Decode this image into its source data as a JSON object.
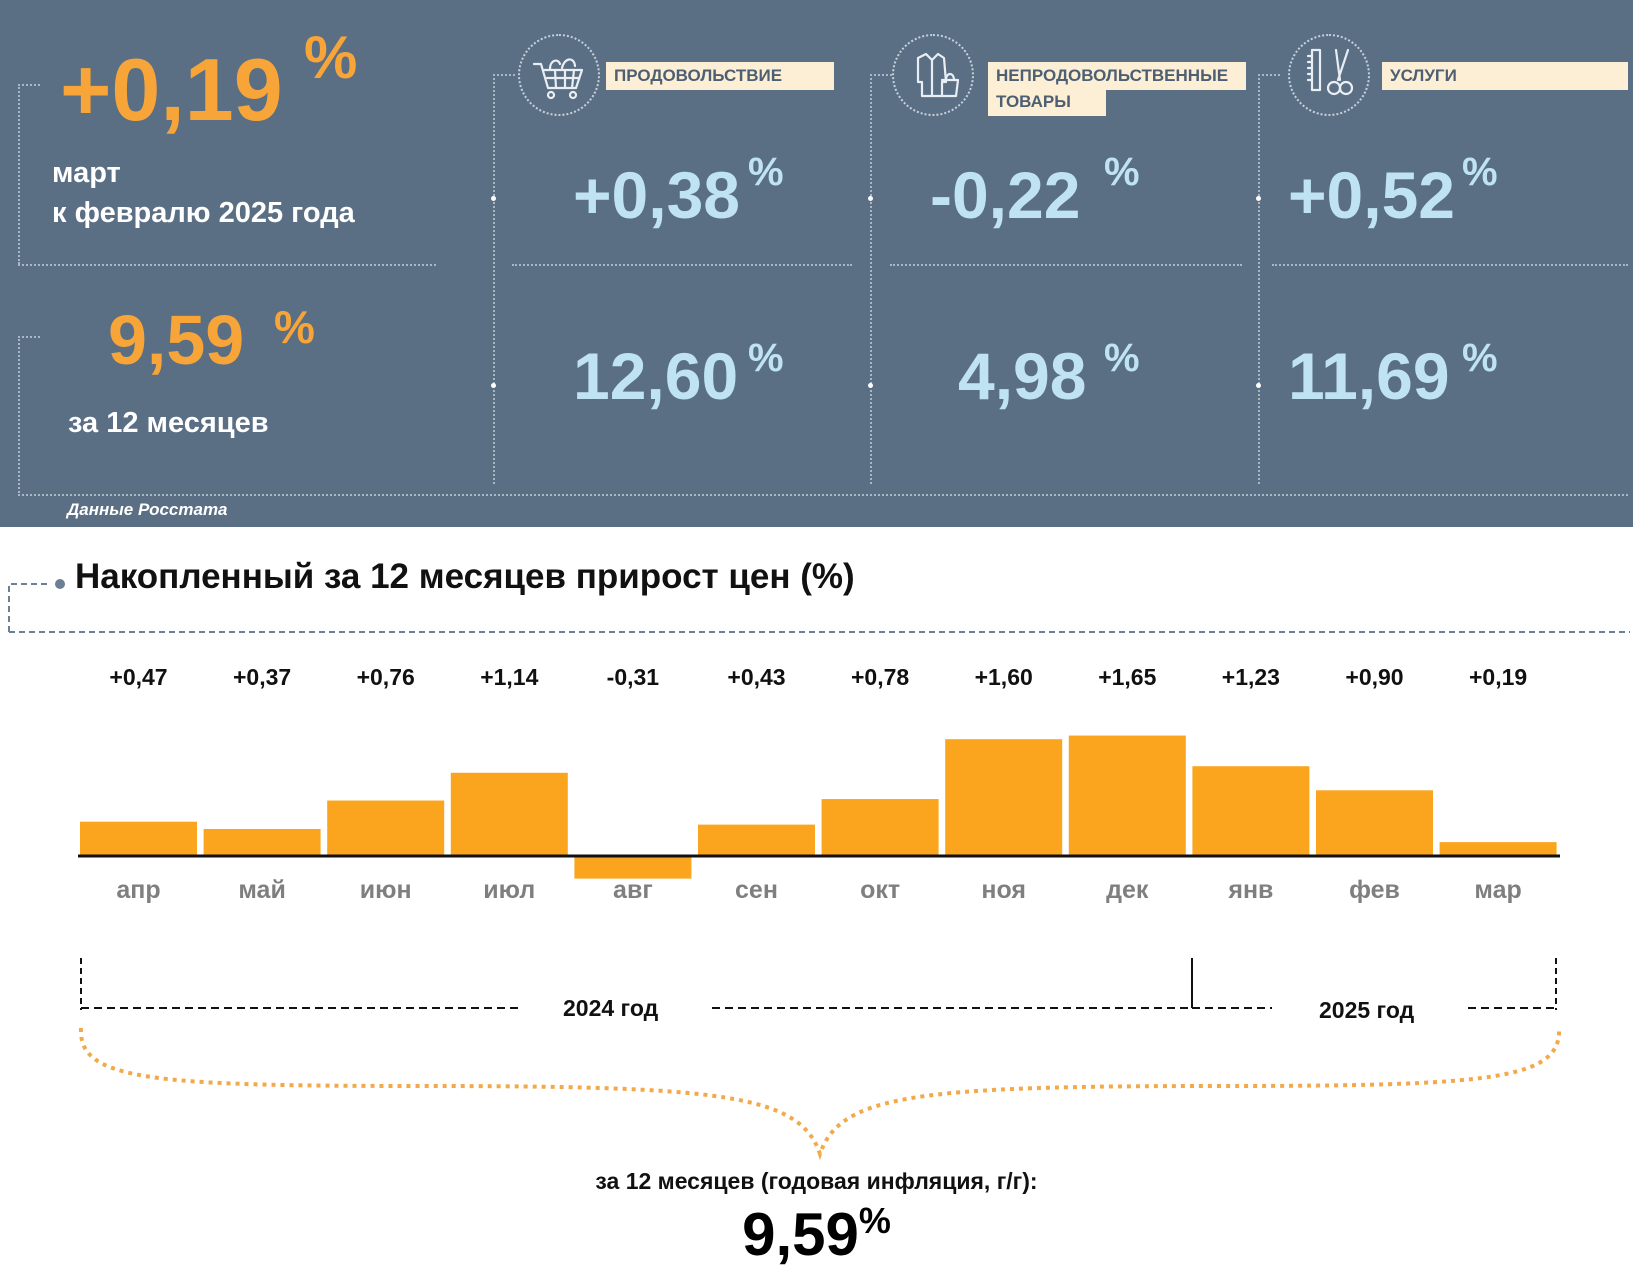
{
  "summary": {
    "monthly_value": "+0,19",
    "monthly_unit": "%",
    "monthly_caption_1": "март",
    "monthly_caption_2": "к февралю 2025 года",
    "annual_value": "9,59",
    "annual_unit": "%",
    "annual_caption": "за 12 месяцев"
  },
  "categories": [
    {
      "label": "ПРОДОВОЛЬСТВИЕ",
      "label_line2": "",
      "icon": "shopping-cart-icon",
      "monthly": "+0,38",
      "annual": "12,60",
      "unit": "%"
    },
    {
      "label": "НЕПРОДОВОЛЬСТВЕННЫЕ",
      "label_line2": "ТОВАРЫ",
      "icon": "clothing-bag-icon",
      "monthly": "-0,22",
      "annual": "4,98",
      "unit": "%"
    },
    {
      "label": "УСЛУГИ",
      "label_line2": "",
      "icon": "scissors-comb-icon",
      "monthly": "+0,52",
      "annual": "11,69",
      "unit": "%"
    }
  ],
  "source": "Данные Росстата",
  "colors": {
    "panel_bg": "#5a6e84",
    "accent_orange": "#f7a538",
    "value_blue": "#bfe3f3",
    "bar": "#fba51f",
    "label_bg": "#fdefd5"
  },
  "chart_data": {
    "type": "bar",
    "title": "Накопленный за 12 месяцев прирост цен (%)",
    "categories": [
      "апр",
      "май",
      "июн",
      "июл",
      "авг",
      "сен",
      "окт",
      "ноя",
      "дек",
      "янв",
      "фев",
      "мар"
    ],
    "values": [
      0.47,
      0.37,
      0.76,
      1.14,
      -0.31,
      0.43,
      0.78,
      1.6,
      1.65,
      1.23,
      0.9,
      0.19
    ],
    "value_labels": [
      "+0,47",
      "+0,37",
      "+0,76",
      "+1,14",
      "-0,31",
      "+0,43",
      "+0,78",
      "+1,60",
      "+1,65",
      "+1,23",
      "+0,90",
      "+0,19"
    ],
    "year_groups": [
      {
        "label": "2024 год",
        "from": "апр",
        "to": "дек"
      },
      {
        "label": "2025 год",
        "from": "янв",
        "to": "мар"
      }
    ],
    "total_caption": "за 12 месяцев (годовая инфляция, г/г):",
    "total_value": "9,59",
    "total_unit": "%",
    "xlabel": "",
    "ylabel": "",
    "grid": false
  }
}
